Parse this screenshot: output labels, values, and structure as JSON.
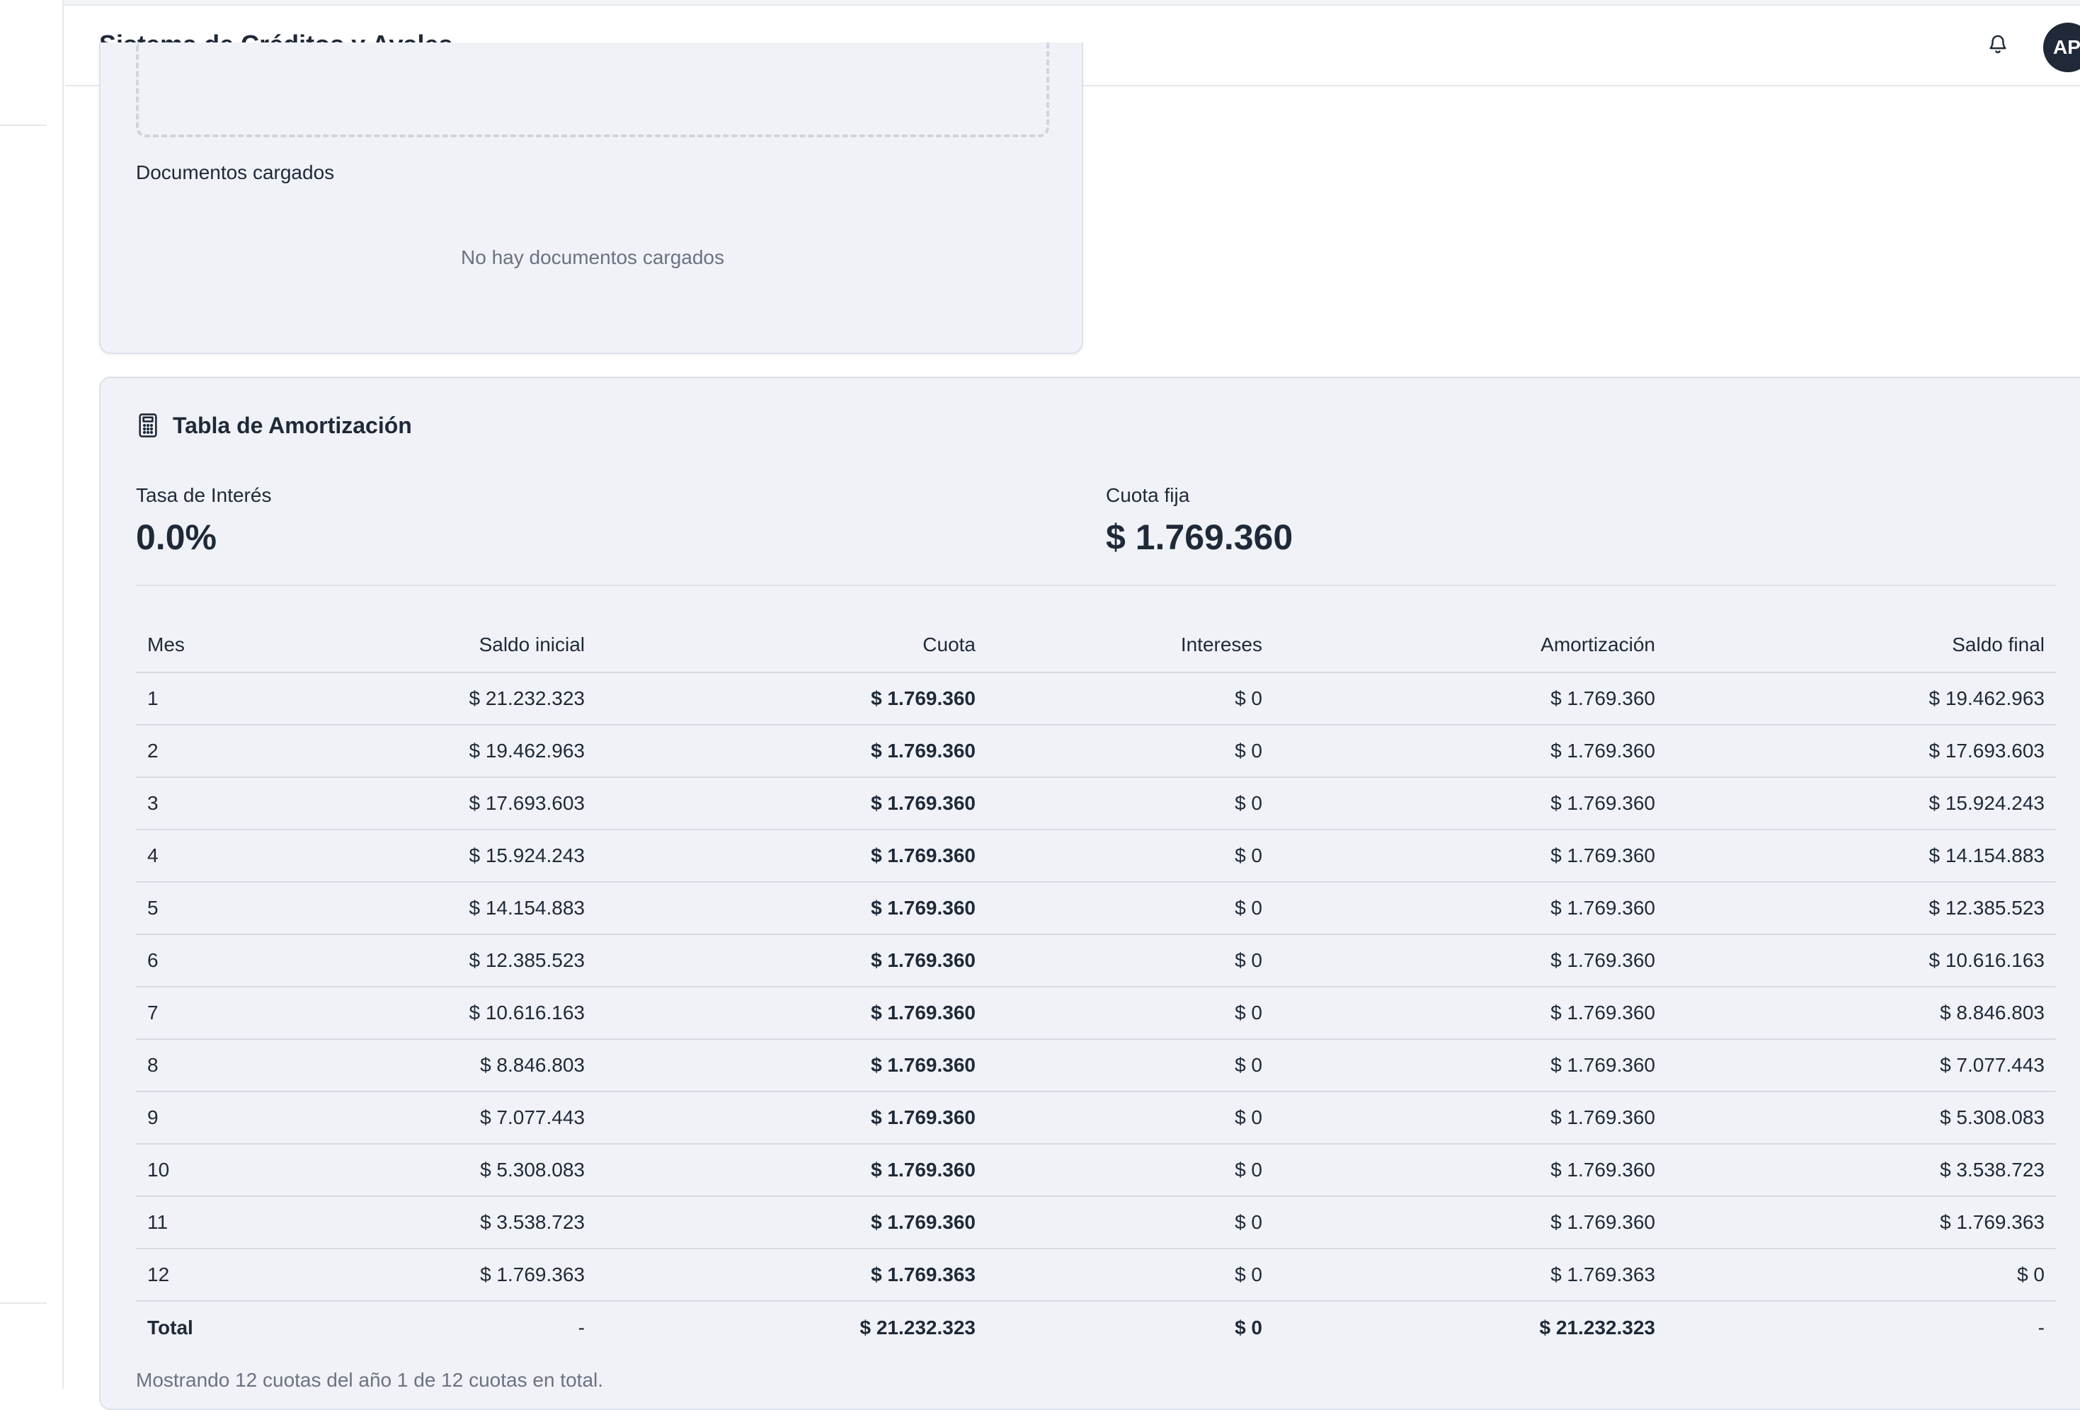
{
  "header": {
    "title": "Sistema de Créditos y Avales",
    "avatar_initials": "AP"
  },
  "documents": {
    "section_label": "Documentos cargados",
    "empty_text": "No hay documentos cargados"
  },
  "amortization": {
    "title": "Tabla de Amortización",
    "rate_label": "Tasa de Interés",
    "rate_value": "0.0%",
    "installment_label": "Cuota fija",
    "installment_value": "$ 1.769.360",
    "columns": [
      "Mes",
      "Saldo inicial",
      "Cuota",
      "Intereses",
      "Amortización",
      "Saldo final"
    ],
    "rows": [
      [
        "1",
        "$ 21.232.323",
        "$ 1.769.360",
        "$ 0",
        "$ 1.769.360",
        "$ 19.462.963"
      ],
      [
        "2",
        "$ 19.462.963",
        "$ 1.769.360",
        "$ 0",
        "$ 1.769.360",
        "$ 17.693.603"
      ],
      [
        "3",
        "$ 17.693.603",
        "$ 1.769.360",
        "$ 0",
        "$ 1.769.360",
        "$ 15.924.243"
      ],
      [
        "4",
        "$ 15.924.243",
        "$ 1.769.360",
        "$ 0",
        "$ 1.769.360",
        "$ 14.154.883"
      ],
      [
        "5",
        "$ 14.154.883",
        "$ 1.769.360",
        "$ 0",
        "$ 1.769.360",
        "$ 12.385.523"
      ],
      [
        "6",
        "$ 12.385.523",
        "$ 1.769.360",
        "$ 0",
        "$ 1.769.360",
        "$ 10.616.163"
      ],
      [
        "7",
        "$ 10.616.163",
        "$ 1.769.360",
        "$ 0",
        "$ 1.769.360",
        "$ 8.846.803"
      ],
      [
        "8",
        "$ 8.846.803",
        "$ 1.769.360",
        "$ 0",
        "$ 1.769.360",
        "$ 7.077.443"
      ],
      [
        "9",
        "$ 7.077.443",
        "$ 1.769.360",
        "$ 0",
        "$ 1.769.360",
        "$ 5.308.083"
      ],
      [
        "10",
        "$ 5.308.083",
        "$ 1.769.360",
        "$ 0",
        "$ 1.769.360",
        "$ 3.538.723"
      ],
      [
        "11",
        "$ 3.538.723",
        "$ 1.769.360",
        "$ 0",
        "$ 1.769.360",
        "$ 1.769.363"
      ],
      [
        "12",
        "$ 1.769.363",
        "$ 1.769.363",
        "$ 0",
        "$ 1.769.363",
        "$ 0"
      ]
    ],
    "total": [
      "Total",
      "-",
      "$ 21.232.323",
      "$ 0",
      "$ 21.232.323",
      "-"
    ],
    "footnote": "Mostrando 12 cuotas del año 1 de 12 cuotas en total."
  }
}
